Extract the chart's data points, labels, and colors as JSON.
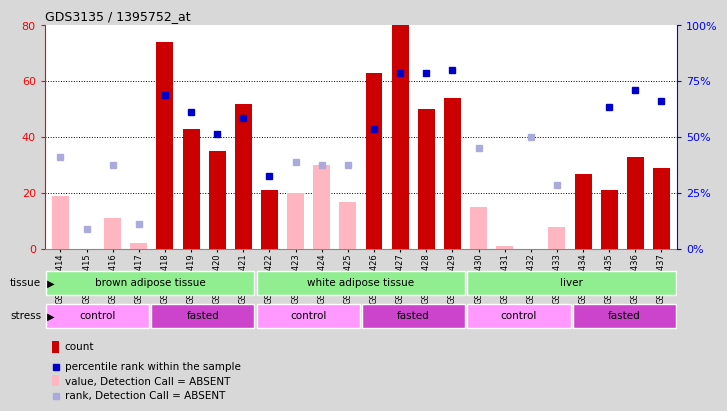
{
  "title": "GDS3135 / 1395752_at",
  "samples": [
    "GSM184414",
    "GSM184415",
    "GSM184416",
    "GSM184417",
    "GSM184418",
    "GSM184419",
    "GSM184420",
    "GSM184421",
    "GSM184422",
    "GSM184423",
    "GSM184424",
    "GSM184425",
    "GSM184426",
    "GSM184427",
    "GSM184428",
    "GSM184429",
    "GSM184430",
    "GSM184431",
    "GSM184432",
    "GSM184433",
    "GSM184434",
    "GSM184435",
    "GSM184436",
    "GSM184437"
  ],
  "count": [
    null,
    null,
    null,
    null,
    74,
    43,
    35,
    52,
    21,
    null,
    null,
    null,
    63,
    80,
    50,
    54,
    null,
    null,
    null,
    null,
    27,
    21,
    33,
    29
  ],
  "count_absent": [
    19,
    null,
    11,
    2,
    null,
    null,
    null,
    null,
    null,
    20,
    30,
    17,
    null,
    null,
    null,
    null,
    15,
    1,
    null,
    8,
    null,
    null,
    null,
    null
  ],
  "rank": [
    null,
    null,
    null,
    null,
    55,
    49,
    41,
    47,
    26,
    null,
    null,
    null,
    43,
    63,
    63,
    64,
    null,
    null,
    null,
    null,
    null,
    51,
    57,
    53
  ],
  "rank_absent": [
    33,
    7,
    30,
    9,
    null,
    null,
    null,
    null,
    null,
    31,
    30,
    30,
    null,
    null,
    null,
    null,
    36,
    null,
    40,
    23,
    null,
    null,
    null,
    null
  ],
  "ylim_left": [
    0,
    80
  ],
  "ylim_right": [
    0,
    100
  ],
  "yticks_left": [
    0,
    20,
    40,
    60,
    80
  ],
  "yticks_right": [
    0,
    25,
    50,
    75,
    100
  ],
  "bar_color_count": "#CC0000",
  "bar_color_absent": "#FFB6C1",
  "marker_color_rank": "#0000CC",
  "marker_color_rank_absent": "#AAAADD",
  "plot_bg": "#FFFFFF",
  "tissue_color": "#90EE90",
  "stress_control_color": "#FF99FF",
  "stress_fasted_color": "#CC44CC",
  "fig_bg": "#D8D8D8"
}
